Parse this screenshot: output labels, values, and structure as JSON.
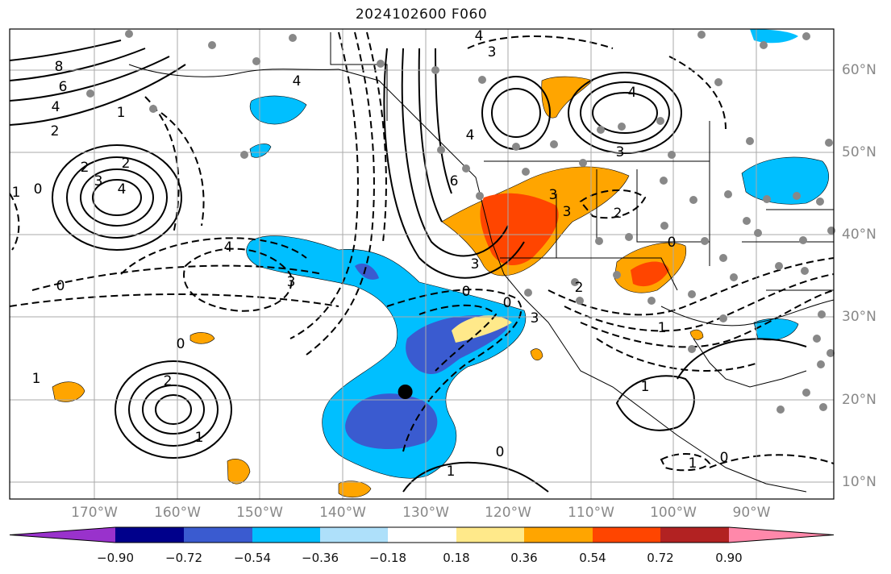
{
  "title": "2024102600 F060",
  "map": {
    "lon_range": [
      -180,
      -80
    ],
    "lat_range": [
      8,
      65
    ],
    "lon_ticks": [
      "170°W",
      "160°W",
      "150°W",
      "140°W",
      "130°W",
      "120°W",
      "110°W",
      "100°W",
      "90°W"
    ],
    "lat_ticks": [
      "60°N",
      "50°N",
      "40°N",
      "30°N",
      "20°N",
      "10°N"
    ],
    "grid": true,
    "marker": {
      "lon": -132,
      "lat": 21,
      "color": "#000000"
    },
    "contour_labels": [
      "8",
      "6",
      "4",
      "2",
      "1",
      "0",
      "2",
      "3",
      "4",
      "2",
      "1",
      "4",
      "4",
      "3",
      "0",
      "4",
      "6",
      "3",
      "3",
      "0",
      "4",
      "3",
      "2",
      "3",
      "3",
      "4",
      "0",
      "2",
      "1",
      "1",
      "0",
      "0",
      "2",
      "1",
      "1",
      "0",
      "1",
      "1",
      "0",
      "3"
    ]
  },
  "colorbar": {
    "ticks": [
      "−0.90",
      "−0.72",
      "−0.54",
      "−0.36",
      "−0.18",
      "0.18",
      "0.36",
      "0.54",
      "0.72",
      "0.90"
    ],
    "colors": [
      "#9932cc",
      "#00008b",
      "#3a5bd0",
      "#00bfff",
      "#aee0fa",
      "#ffffff",
      "#ffe98a",
      "#ffa500",
      "#ff4500",
      "#b22222",
      "#ff88aa"
    ]
  }
}
